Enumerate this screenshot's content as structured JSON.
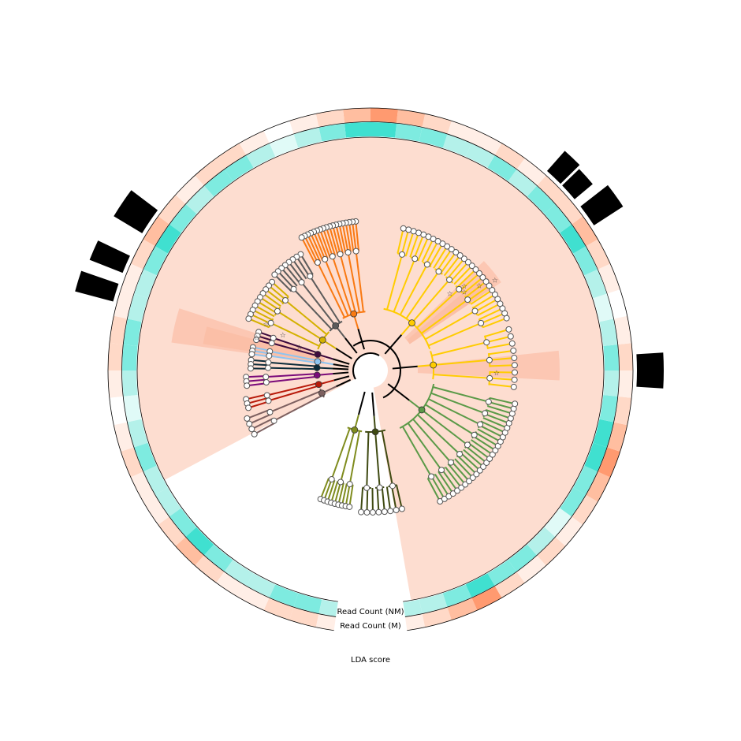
{
  "chart_data": {
    "type": "circular-cladogram",
    "clade_colors": [
      "#f97912",
      "#5b5b5b",
      "#d4b100",
      "#3d0a3d",
      "#8ec4f0",
      "#0b2b3a",
      "#7a0a7a",
      "#b81a0a",
      "#7d6060",
      "#7f8c1e",
      "#3f4a12",
      "#5b9a48",
      "#ffcc00"
    ],
    "tree_color": "#000000",
    "highlight_color": "#fdddd0",
    "highlight_strong_color": "#fbb59a",
    "ring_nm": {
      "label": "Read Count (NM)",
      "colors": [
        "#40e0d0",
        "#7eebe0",
        "#b4f1ea",
        "#e0faf7",
        "#ffffff"
      ]
    },
    "ring_m": {
      "label": "Read Count (M)",
      "colors": [
        "#ff9a70",
        "#ffbea0",
        "#ffd9c7",
        "#ffeee6",
        "#ffffff"
      ]
    },
    "lda": {
      "label": "LDA score",
      "bar_color": "#000000",
      "bar_count": 7
    }
  }
}
